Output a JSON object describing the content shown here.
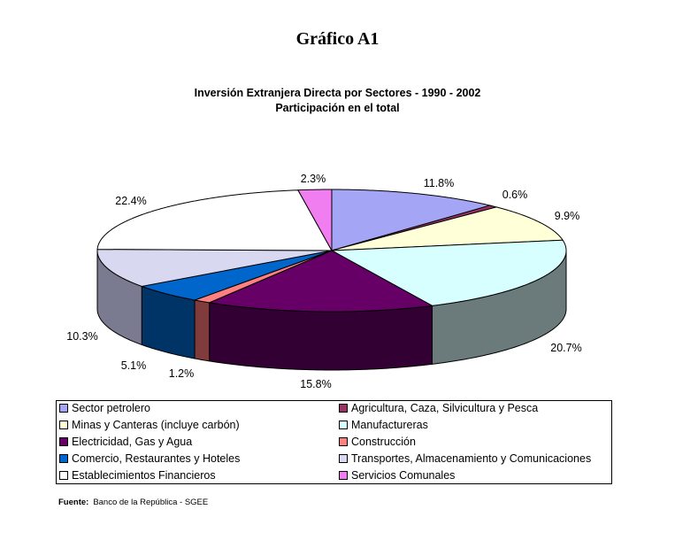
{
  "header": {
    "title": "Gráfico A1",
    "subtitle_line1": "Inversión Extranjera Directa por Sectores - 1990 - 2002",
    "subtitle_line2": "Participación en el total"
  },
  "chart_data": {
    "type": "pie",
    "style": "3d",
    "legend_position": "bottom",
    "categories": [
      "Sector petrolero",
      "Agricultura, Caza, Silvicultura y Pesca",
      "Minas y Canteras (incluye carbón)",
      "Manufactureras",
      "Electricidad, Gas y Agua",
      "Construcción",
      "Comercio, Restaurantes y Hoteles",
      "Transportes, Almacenamiento y Comunicaciones",
      "Establecimientos Financieros",
      "Servicios Comunales"
    ],
    "values": [
      11.8,
      0.6,
      9.9,
      20.7,
      15.8,
      1.2,
      5.1,
      10.3,
      22.4,
      2.3
    ],
    "data_labels": [
      "11.8%",
      "0.6%",
      "9.9%",
      "20.7%",
      "15.8%",
      "1.2%",
      "5.1%",
      "10.3%",
      "22.4%",
      "2.3%"
    ],
    "colors": [
      "#a5a5f5",
      "#993366",
      "#ffffd8",
      "#d8ffff",
      "#660066",
      "#ff8080",
      "#0066cc",
      "#d8d8f0",
      "#ffffff",
      "#f07ef0"
    ],
    "side_colors": [
      "#555590",
      "#4d1a33",
      "#8a8a70",
      "#6b7b7b",
      "#330033",
      "#803c3c",
      "#003366",
      "#7a7a90",
      "#888888",
      "#883388"
    ]
  },
  "footer": {
    "source_label": "Fuente:",
    "source_text": "Banco de la República - SGEE"
  }
}
